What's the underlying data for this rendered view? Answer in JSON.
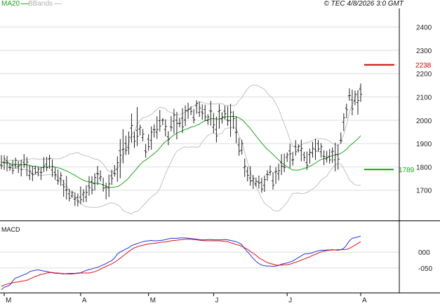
{
  "legend": {
    "ma_label": "MA20",
    "bb_label": "BBands"
  },
  "footer": "© TEC 4/8/2026 3:0 GMT",
  "colors": {
    "price_bar": "#222222",
    "ma20": "#1aa51a",
    "bbands": "#c0c0c0",
    "macd_line": "#2233dd",
    "signal_line": "#dd1111",
    "resistance": "#cc0000",
    "support": "#11aa11",
    "grid": "#dddddd",
    "axis": "#000000"
  },
  "chart_data": [
    {
      "type": "ohlc",
      "panel": "price",
      "y_ticks": [
        "2400",
        "2300",
        "2200",
        "2100",
        "2000",
        "1900",
        "1800",
        "1700"
      ],
      "ylim": [
        1570,
        2480
      ],
      "x_labels": [
        "M",
        "A",
        "M",
        "J",
        "J",
        "A"
      ],
      "levels": [
        {
          "name": "resistance",
          "value": 2238,
          "label": "2238"
        },
        {
          "name": "support",
          "value": 1789,
          "label": "1789"
        }
      ],
      "highs": [
        1850,
        1850,
        1847,
        1818,
        1830,
        1840,
        1826,
        1831,
        1855,
        1842,
        1808,
        1804,
        1805,
        1801,
        1799,
        1842,
        1843,
        1852,
        1832,
        1798,
        1789,
        1778,
        1745,
        1761,
        1706,
        1698,
        1691,
        1686,
        1716,
        1704,
        1721,
        1760,
        1760,
        1773,
        1804,
        1785,
        1754,
        1732,
        1767,
        1788,
        1808,
        1845,
        1920,
        1962,
        1934,
        1952,
        2029,
        1951,
        2057,
        1981,
        1963,
        1898,
        1940,
        1974,
        1983,
        2017,
        2044,
        2009,
        2004,
        1953,
        2018,
        2049,
        2036,
        2011,
        2052,
        2064,
        2075,
        2060,
        2048,
        2086,
        2080,
        2068,
        2067,
        2026,
        2083,
        2031,
        2016,
        2069,
        2035,
        2063,
        2061,
        2070,
        2039,
        2017,
        1925,
        1916,
        1836,
        1800,
        1803,
        1765,
        1755,
        1763,
        1753,
        1763,
        1786,
        1806,
        1778,
        1799,
        1814,
        1855,
        1857,
        1862,
        1899,
        1865,
        1915,
        1897,
        1917,
        1865,
        1866,
        1879,
        1907,
        1921,
        1915,
        1902,
        1871,
        1869,
        1877,
        1884,
        1904,
        1896,
        1948,
        2030,
        2071,
        2137,
        2131,
        2127,
        2128,
        2158
      ],
      "lows": [
        1790,
        1787,
        1781,
        1783,
        1769,
        1793,
        1774,
        1759,
        1796,
        1760,
        1744,
        1739,
        1767,
        1760,
        1744,
        1778,
        1781,
        1792,
        1757,
        1744,
        1723,
        1719,
        1672,
        1660,
        1652,
        1666,
        1632,
        1630,
        1640,
        1648,
        1649,
        1676,
        1682,
        1698,
        1722,
        1738,
        1694,
        1661,
        1671,
        1723,
        1758,
        1736,
        1751,
        1815,
        1851,
        1853,
        1904,
        1881,
        1890,
        1935,
        1910,
        1840,
        1869,
        1874,
        1926,
        1920,
        1952,
        1979,
        1931,
        1893,
        1953,
        1943,
        1918,
        1970,
        1945,
        1975,
        2006,
        2022,
        1987,
        2028,
        2014,
        2003,
        1997,
        1980,
        1977,
        1945,
        1905,
        1964,
        1986,
        2003,
        1976,
        1929,
        1963,
        1901,
        1848,
        1853,
        1757,
        1738,
        1719,
        1705,
        1715,
        1707,
        1689,
        1693,
        1740,
        1763,
        1703,
        1727,
        1742,
        1765,
        1777,
        1821,
        1796,
        1806,
        1848,
        1862,
        1824,
        1824,
        1787,
        1814,
        1840,
        1830,
        1864,
        1840,
        1808,
        1819,
        1814,
        1817,
        1781,
        1788,
        1900,
        1954,
        2009,
        2084,
        2021,
        2065,
        2024,
        2079
      ]
    },
    {
      "type": "line",
      "panel": "macd",
      "title": "MACD",
      "y_ticks": [
        "000",
        "-050"
      ],
      "ylim": [
        -128,
        98
      ],
      "series": [
        {
          "name": "MACD",
          "values": [
            -119,
            -111,
            -108,
            -104,
            -91,
            -82,
            -79,
            -75,
            -71,
            -68,
            -62,
            -59,
            -57,
            -56,
            -58,
            -60,
            -61,
            -63,
            -65,
            -67,
            -67,
            -68,
            -69,
            -68,
            -67,
            -67,
            -67,
            -66,
            -65,
            -61,
            -58,
            -55,
            -53,
            -50,
            -48,
            -44,
            -40,
            -36,
            -31,
            -27,
            -18,
            -6,
            1,
            5,
            10,
            14,
            21,
            24,
            27,
            30,
            33,
            35,
            36,
            37,
            36,
            36,
            37,
            38,
            40,
            42,
            44,
            44,
            44,
            45,
            45,
            45,
            44,
            43,
            42,
            41,
            40,
            39,
            39,
            40,
            40,
            39,
            39,
            39,
            39,
            40,
            39,
            37,
            35,
            33,
            29,
            23,
            11,
            1,
            -9,
            -20,
            -29,
            -36,
            -41,
            -43,
            -44,
            -44,
            -45,
            -44,
            -42,
            -38,
            -36,
            -34,
            -31,
            -28,
            -22,
            -17,
            -12,
            -6,
            -5,
            -4,
            -2,
            2,
            4,
            6,
            6,
            7,
            7,
            8,
            7,
            6,
            8,
            12,
            22,
            36,
            44,
            46,
            48,
            51
          ]
        },
        {
          "name": "Signal",
          "values": [
            -108,
            -104,
            -101,
            -99,
            -97,
            -95,
            -94,
            -92,
            -91,
            -89,
            -85,
            -81,
            -77,
            -74,
            -70,
            -69,
            -66,
            -65,
            -64,
            -66,
            -66,
            -67,
            -68,
            -69,
            -69,
            -69,
            -68,
            -67,
            -66,
            -66,
            -66,
            -66,
            -64,
            -62,
            -58,
            -54,
            -49,
            -45,
            -41,
            -37,
            -32,
            -26,
            -19,
            -12,
            -5,
            2,
            8,
            14,
            17,
            20,
            22,
            24,
            26,
            27,
            28,
            29,
            31,
            32,
            32,
            34,
            36,
            37,
            38,
            39,
            40,
            41,
            41,
            41,
            40,
            39,
            38,
            37,
            36,
            36,
            36,
            36,
            36,
            36,
            35,
            34,
            33,
            30,
            27,
            24,
            22,
            18,
            14,
            9,
            2,
            -4,
            -10,
            -18,
            -23,
            -28,
            -33,
            -36,
            -38,
            -41,
            -41,
            -41,
            -40,
            -40,
            -38,
            -35,
            -32,
            -29,
            -25,
            -22,
            -18,
            -15,
            -10,
            -7,
            -3,
            1,
            3,
            5,
            6,
            7,
            7,
            8,
            8,
            8,
            9,
            12,
            17,
            22,
            28,
            33
          ]
        }
      ]
    }
  ]
}
